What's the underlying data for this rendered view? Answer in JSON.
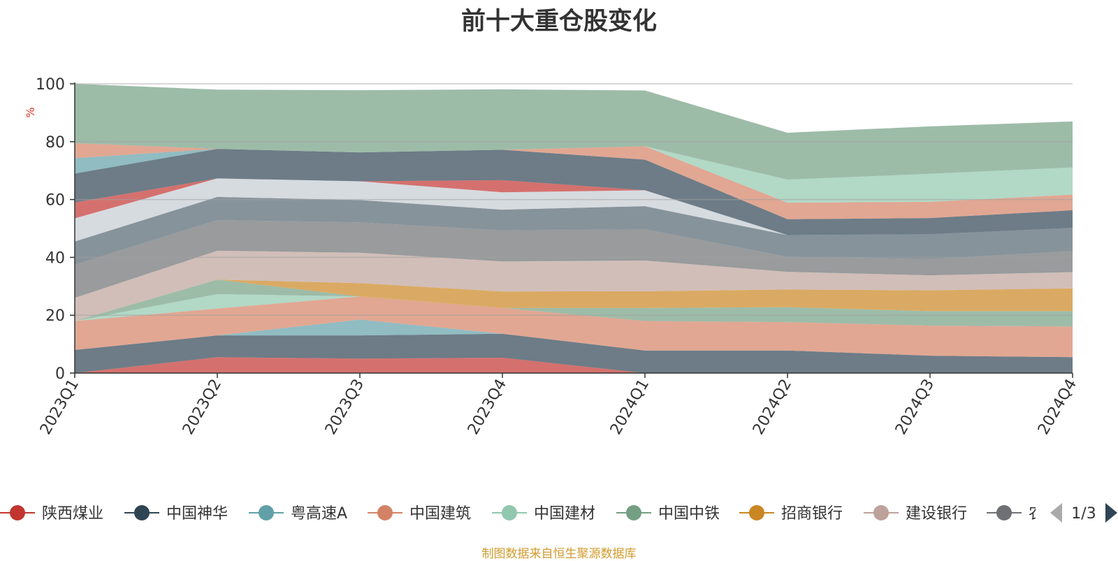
{
  "title": "前十大重仓股变化",
  "footer": "制图数据来自恒生聚源数据库",
  "legend_page": "1/3",
  "colors": {
    "axis": "#333333",
    "grid": "#cccccc",
    "ylabel": "#e23c2f",
    "footer": "#d19a2e",
    "pager_inactive": "#aaaaaa",
    "pager_active": "#2f4554"
  },
  "chart_data": {
    "type": "area",
    "stacked": true,
    "title": "前十大重仓股变化",
    "ylabel": "%",
    "ylim": [
      0,
      100
    ],
    "yticks": [
      0,
      20,
      40,
      60,
      80,
      100
    ],
    "grid": true,
    "legend_position": "bottom",
    "categories": [
      "2023Q1",
      "2023Q2",
      "2023Q3",
      "2023Q4",
      "2024Q1",
      "2024Q2",
      "2024Q3",
      "2024Q4"
    ],
    "series": [
      {
        "color": "#c23531",
        "values": [
          0,
          5.5,
          5,
          5.3,
          0,
          0,
          0,
          0
        ]
      },
      {
        "color": "#2f4554",
        "values": [
          8,
          7.5,
          8,
          8.3,
          7.8,
          7.8,
          6,
          5.5
        ]
      },
      {
        "color": "#61a0a8",
        "values": [
          0,
          0,
          5.5,
          0,
          0,
          0,
          0,
          0
        ]
      },
      {
        "color": "#d48265",
        "values": [
          10,
          9.3,
          8,
          8.9,
          10.2,
          9.8,
          10.4,
          10.6
        ]
      },
      {
        "color": "#91c7ae",
        "values": [
          0,
          5,
          0,
          0,
          0,
          0,
          0,
          0
        ]
      },
      {
        "color": "#749f83",
        "values": [
          0,
          5,
          0,
          0,
          4.5,
          5.2,
          5,
          5.3
        ]
      },
      {
        "color": "#ca8622",
        "values": [
          0,
          0,
          4.6,
          5.7,
          5.8,
          6.1,
          7.2,
          7.9
        ]
      },
      {
        "color": "#bda29a",
        "values": [
          8,
          10,
          10.5,
          10.4,
          10.6,
          6.1,
          5.2,
          5.6
        ]
      },
      {
        "color": "#6e7074",
        "values": [
          11.5,
          10.6,
          10.5,
          10.7,
          10.8,
          5.2,
          5.6,
          7.3
        ]
      },
      {
        "color": "#546570",
        "values": [
          8,
          8,
          7.7,
          7.2,
          8,
          7.5,
          8.6,
          8
        ]
      },
      {
        "color": "#c4ccd3",
        "values": [
          8,
          6.4,
          6.5,
          6,
          5.5,
          0,
          0,
          0
        ]
      },
      {
        "color": "#c23531",
        "values": [
          5.5,
          0,
          0,
          4.2,
          0,
          0,
          0,
          0
        ]
      },
      {
        "color": "#2f4554",
        "values": [
          10,
          10.2,
          10,
          10.5,
          10.6,
          5.5,
          5.6,
          6.1
        ]
      },
      {
        "color": "#61a0a8",
        "values": [
          5.3,
          0,
          0,
          0,
          0,
          0,
          0,
          0
        ]
      },
      {
        "color": "#d48265",
        "values": [
          5.2,
          0,
          0,
          0,
          4.6,
          5.7,
          5.6,
          5.4
        ]
      },
      {
        "color": "#91c7ae",
        "values": [
          0,
          0,
          0,
          0,
          0,
          8,
          9.7,
          9.4
        ]
      },
      {
        "color": "#749f83",
        "values": [
          20.5,
          20.5,
          21.5,
          20.9,
          19.3,
          16.2,
          16.4,
          15.9
        ]
      }
    ]
  },
  "legend_items": [
    {
      "name": "陕西煤业",
      "color": "#c23531"
    },
    {
      "name": "中国神华",
      "color": "#2f4554"
    },
    {
      "name": "粤高速A",
      "color": "#61a0a8"
    },
    {
      "name": "中国建筑",
      "color": "#d48265"
    },
    {
      "name": "中国建材",
      "color": "#91c7ae"
    },
    {
      "name": "中国中铁",
      "color": "#749f83"
    },
    {
      "name": "招商银行",
      "color": "#ca8622"
    },
    {
      "name": "建设银行",
      "color": "#bda29a"
    },
    {
      "name": "农",
      "color": "#6e7074"
    }
  ]
}
